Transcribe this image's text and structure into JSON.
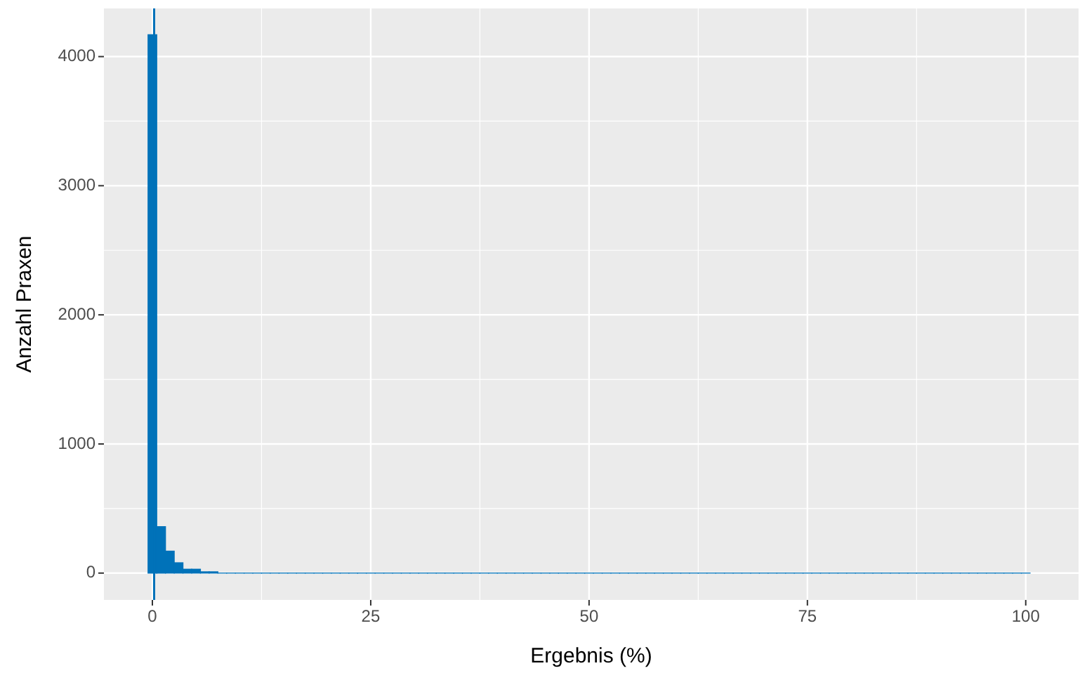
{
  "chart_data": {
    "type": "histogram",
    "xlabel": "Ergebnis (%)",
    "ylabel": "Anzahl Praxen",
    "color": "#0072b9",
    "bins": [
      -0.5,
      0.5,
      1.5,
      2.5,
      3.5,
      4.5,
      5.5,
      6.5,
      7.5,
      8.5,
      9.5,
      10.5,
      11.5,
      12.5,
      13.5,
      14.5,
      15.5,
      16.5,
      17.5,
      18.5,
      19.5,
      20.5,
      21.5,
      22.5,
      23.5,
      24.5,
      25.5,
      26.5,
      27.5,
      28.5,
      29.5,
      30.5,
      31.5,
      32.5,
      33.5,
      34.5,
      35.5,
      36.5,
      37.5,
      38.5,
      39.5,
      40.5,
      41.5,
      42.5,
      43.5,
      44.5,
      45.5,
      46.5,
      47.5,
      48.5,
      49.5,
      50.5,
      51.5,
      52.5,
      53.5,
      54.5,
      55.5,
      56.5,
      57.5,
      58.5,
      59.5,
      60.5,
      61.5,
      62.5,
      63.5,
      64.5,
      65.5,
      66.5,
      67.5,
      68.5,
      69.5,
      70.5,
      71.5,
      72.5,
      73.5,
      74.5,
      75.5,
      76.5,
      77.5,
      78.5,
      79.5,
      80.5,
      81.5,
      82.5,
      83.5,
      84.5,
      85.5,
      86.5,
      87.5,
      88.5,
      89.5,
      90.5,
      91.5,
      92.5,
      93.5,
      94.5,
      95.5,
      96.5,
      97.5,
      98.5,
      99.5,
      100.5
    ],
    "values": [
      4170,
      360,
      170,
      80,
      30,
      30,
      10,
      10,
      0,
      0,
      0,
      0,
      0,
      0,
      0,
      0,
      0,
      0,
      0,
      0,
      0,
      0,
      0,
      0,
      0,
      0,
      0,
      0,
      0,
      0,
      0,
      0,
      0,
      0,
      0,
      0,
      0,
      0,
      0,
      0,
      0,
      0,
      0,
      0,
      0,
      0,
      0,
      0,
      0,
      0,
      0,
      0,
      0,
      0,
      0,
      0,
      0,
      0,
      0,
      0,
      0,
      0,
      0,
      0,
      0,
      0,
      0,
      0,
      0,
      0,
      0,
      0,
      0,
      0,
      0,
      0,
      0,
      0,
      0,
      0,
      0,
      0,
      0,
      0,
      0,
      0,
      0,
      0,
      0,
      0,
      0,
      0,
      0,
      0,
      0,
      0,
      0,
      0,
      0,
      0,
      0
    ],
    "xlim": [
      -5.55,
      106.05
    ],
    "xticks": [
      0,
      {
        "value": 12.5,
        "label": null
      },
      25,
      {
        "value": 37.5,
        "label": null
      },
      50,
      {
        "value": 62.5,
        "label": null
      },
      75,
      {
        "value": 87.5,
        "label": null
      },
      100
    ],
    "ylim": [
      -208,
      4373
    ],
    "yticks": [
      0,
      {
        "value": 500,
        "label": null
      },
      1000,
      {
        "value": 1500,
        "label": null
      },
      2000,
      {
        "value": 2500,
        "label": null
      },
      3000,
      {
        "value": 3500,
        "label": null
      },
      4000
    ],
    "ref_lines": [
      {
        "axis": "x",
        "value": 0.2,
        "color": "#0072b9"
      }
    ],
    "grid": true
  }
}
